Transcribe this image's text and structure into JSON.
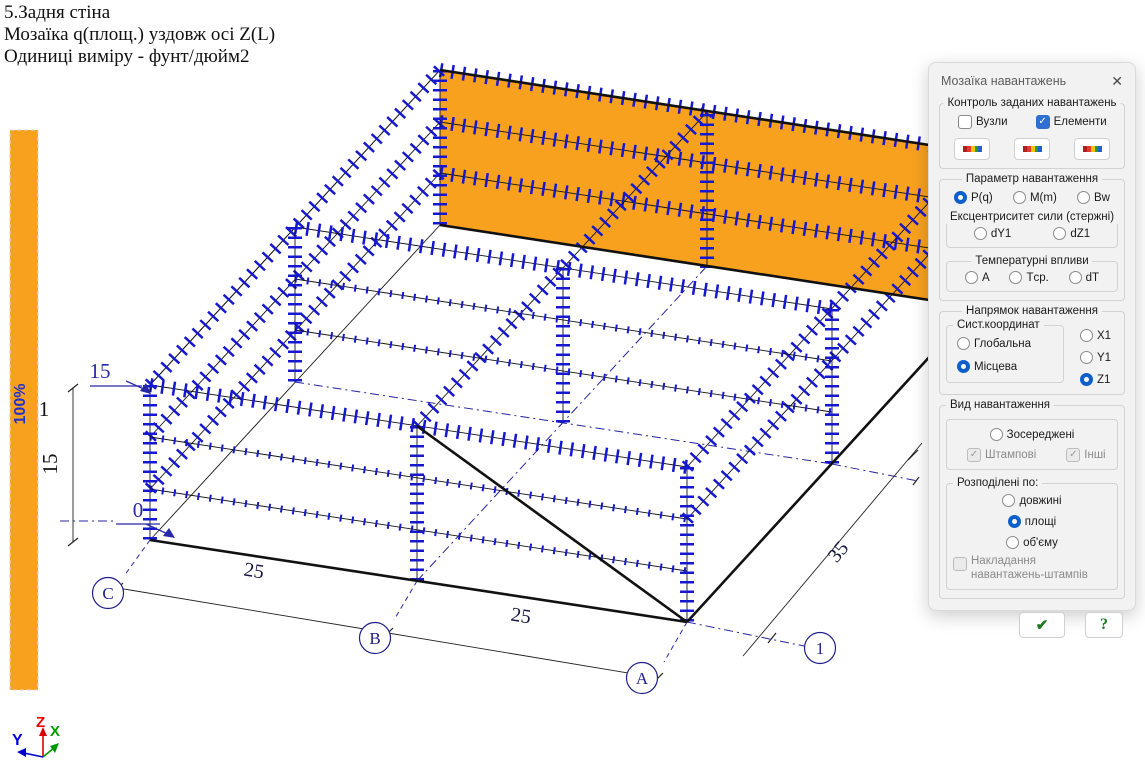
{
  "header": {
    "line1": "5.Задня стіна",
    "line2": "Мозаїка q(площ.) уздовж осі  Z(L)",
    "line3": "Одиниці виміру - фунт/дюйм2"
  },
  "scale_bar": {
    "value": "100%"
  },
  "scene": {
    "dim_top": "15",
    "dim_zero": "0",
    "dim_story_height": "15",
    "story_label": "1",
    "dim_span1": "25",
    "dim_span2": "25",
    "dim_depth": "35",
    "axis_c": "C",
    "axis_b": "B",
    "axis_a": "A",
    "axis_1": "1",
    "triad": {
      "x": "X",
      "y": "Y",
      "z": "Z"
    }
  },
  "colors": {
    "load_blue": "#1518CE",
    "wall_orange": "#F8A11E",
    "annotation_navy": "#2828A8",
    "accent_radio": "#0D5FC9"
  },
  "dialog": {
    "title": "Мозаїка навантажень",
    "icons": {
      "close": "✕",
      "check": "✓",
      "apply": "✔",
      "help": "?"
    },
    "control": {
      "label": "Контроль заданих навантажень",
      "nodes": "Вузли",
      "elements": "Елементи",
      "nodes_checked": false,
      "elements_checked": true
    },
    "param": {
      "label": "Параметр навантаження",
      "options": [
        "P(q)",
        "M(m)",
        "Bw"
      ],
      "selected": "P(q)"
    },
    "eccentricity": {
      "label": "Ексцентриситет сили (стержні)",
      "options": [
        "dY1",
        "dZ1"
      ],
      "selected": ""
    },
    "temperature": {
      "label": "Температурні впливи",
      "options": [
        "A",
        "Tср.",
        "dT"
      ],
      "selected": ""
    },
    "direction": {
      "label": "Напрямок навантаження",
      "coord_label": "Сист.координат",
      "coord_options": [
        "Глобальна",
        "Місцева"
      ],
      "coord_selected": "Місцева",
      "axis_options": [
        "X1",
        "Y1",
        "Z1"
      ],
      "axis_selected": "Z1"
    },
    "kind": {
      "label": "Вид навантаження",
      "concentrated": "Зосереджені",
      "stamp": "Штампові",
      "other": "Інші",
      "distributed_label": "Розподілені по:",
      "distributed_options": [
        "довжині",
        "площі",
        "об'єму"
      ],
      "distributed_selected": "площі",
      "overlay": "Накладання навантажень-штампів"
    }
  }
}
